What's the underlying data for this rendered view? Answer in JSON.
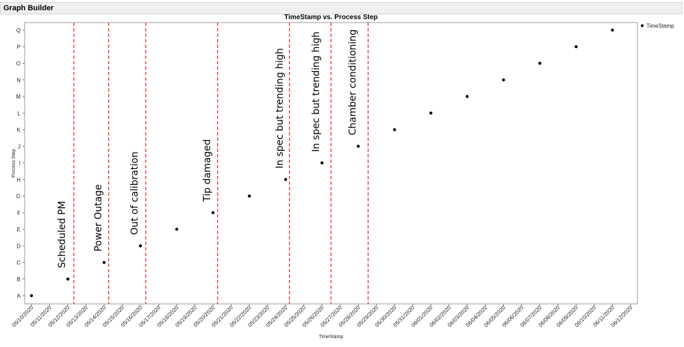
{
  "window": {
    "title": "Graph Builder"
  },
  "chart_data": {
    "type": "scatter",
    "title": "TimeStamp vs. Process Step",
    "xlabel": "TimeStamp",
    "ylabel": "Process Step",
    "x_ticks": [
      "05/10/2020",
      "05/11/2020",
      "05/12/2020",
      "05/13/2020",
      "05/14/2020",
      "05/15/2020",
      "05/16/2020",
      "05/17/2020",
      "05/18/2020",
      "05/19/2020",
      "05/20/2020",
      "05/21/2020",
      "05/22/2020",
      "05/23/2020",
      "05/24/2020",
      "05/25/2020",
      "05/26/2020",
      "05/27/2020",
      "05/28/2020",
      "05/29/2020",
      "05/30/2020",
      "05/31/2020",
      "06/01/2020",
      "06/02/2020",
      "06/03/2020",
      "06/04/2020",
      "06/05/2020",
      "06/06/2020",
      "06/07/2020",
      "06/08/2020",
      "06/09/2020",
      "06/10/2020",
      "06/11/2020",
      "06/12/2020"
    ],
    "y_categories": [
      "A",
      "B",
      "C",
      "D",
      "E",
      "F",
      "G",
      "H",
      "I",
      "J",
      "K",
      "L",
      "M",
      "N",
      "O",
      "P",
      "Q"
    ],
    "series": [
      {
        "name": "TimeStamp",
        "color": "#000000",
        "points": [
          {
            "x": "05/10/2020",
            "y": "A"
          },
          {
            "x": "05/12/2020",
            "y": "B"
          },
          {
            "x": "05/14/2020",
            "y": "C"
          },
          {
            "x": "05/16/2020",
            "y": "D"
          },
          {
            "x": "05/18/2020",
            "y": "E"
          },
          {
            "x": "05/20/2020",
            "y": "F"
          },
          {
            "x": "05/22/2020",
            "y": "G"
          },
          {
            "x": "05/24/2020",
            "y": "H"
          },
          {
            "x": "05/26/2020",
            "y": "I"
          },
          {
            "x": "05/28/2020",
            "y": "J"
          },
          {
            "x": "05/30/2020",
            "y": "K"
          },
          {
            "x": "06/01/2020",
            "y": "L"
          },
          {
            "x": "06/03/2020",
            "y": "M"
          },
          {
            "x": "06/05/2020",
            "y": "N"
          },
          {
            "x": "06/07/2020",
            "y": "O"
          },
          {
            "x": "06/09/2020",
            "y": "P"
          },
          {
            "x": "06/11/2020",
            "y": "Q"
          }
        ]
      }
    ],
    "annotations": [
      {
        "text": "Scheduled PM",
        "anchor_x": "05/12/2020",
        "at_y": "B",
        "line_x": "05/12/2020 08:00"
      },
      {
        "text": "Power Outage",
        "anchor_x": "05/14/2020",
        "at_y": "C",
        "line_x": "05/14/2020 06:00"
      },
      {
        "text": "Out of calibration",
        "anchor_x": "05/16/2020",
        "at_y": "D",
        "line_x": "05/16/2020 07:00"
      },
      {
        "text": "Tip damaged",
        "anchor_x": "05/20/2020",
        "at_y": "F",
        "line_x": "05/20/2020 06:00"
      },
      {
        "text": "In spec but trending high",
        "anchor_x": "05/24/2020",
        "at_y": "H",
        "line_x": "05/24/2020 05:00"
      },
      {
        "text": "In spec but trending high",
        "anchor_x": "05/26/2020",
        "at_y": "I",
        "line_x": "05/26/2020 12:00"
      },
      {
        "text": "Chamber conditioning",
        "anchor_x": "05/28/2020",
        "at_y": "J",
        "line_x": "05/28/2020 13:00"
      }
    ],
    "reference_line_color": "#e8202a",
    "reference_line_style": "dashed",
    "grid": false,
    "legend": {
      "position": "top-right",
      "entries": [
        "TimeStamp"
      ]
    }
  }
}
